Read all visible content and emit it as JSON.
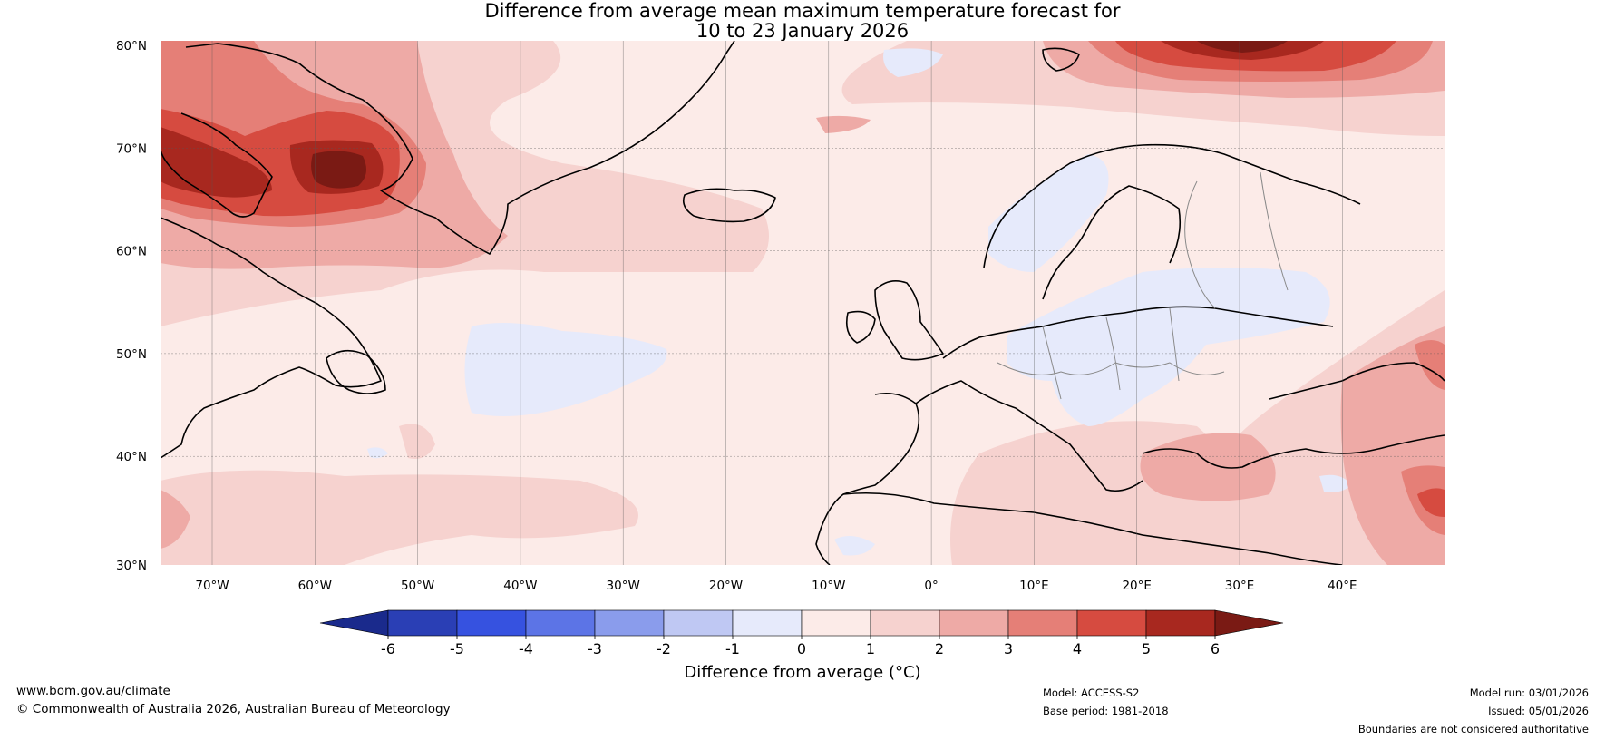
{
  "title_line1": "Difference from average mean maximum temperature forecast for",
  "title_line2": "10 to 23 January 2026",
  "lat_labels": [
    "80°N",
    "70°N",
    "60°N",
    "50°N",
    "40°N",
    "30°N"
  ],
  "lon_labels": [
    "70°W",
    "60°W",
    "50°W",
    "40°W",
    "30°W",
    "20°W",
    "10°W",
    "0°",
    "10°E",
    "20°E",
    "30°E",
    "40°E"
  ],
  "colorbar": {
    "label": "Difference from average (°C)",
    "ticks": [
      "-6",
      "-5",
      "-4",
      "-3",
      "-2",
      "-1",
      "0",
      "1",
      "2",
      "3",
      "4",
      "5",
      "6"
    ],
    "colors": [
      "#1a2a8c",
      "#2a3fb5",
      "#3652e0",
      "#5c74e6",
      "#8a9cec",
      "#bfc8f3",
      "#e6eafb",
      "#fcebe8",
      "#f6d2cf",
      "#eeaaa6",
      "#e57f77",
      "#d64b40",
      "#a8281f",
      "#7a1a14"
    ]
  },
  "footer": {
    "website": "www.bom.gov.au/climate",
    "copyright": "© Commonwealth of Australia 2026, Australian Bureau of Meteorology",
    "model": "Model: ACCESS-S2",
    "base_period": "Base period: 1981-2018",
    "model_run": "Model run: 03/01/2026",
    "issued": "Issued: 05/01/2026",
    "disclaimer": "Boundaries are not considered authoritative"
  }
}
